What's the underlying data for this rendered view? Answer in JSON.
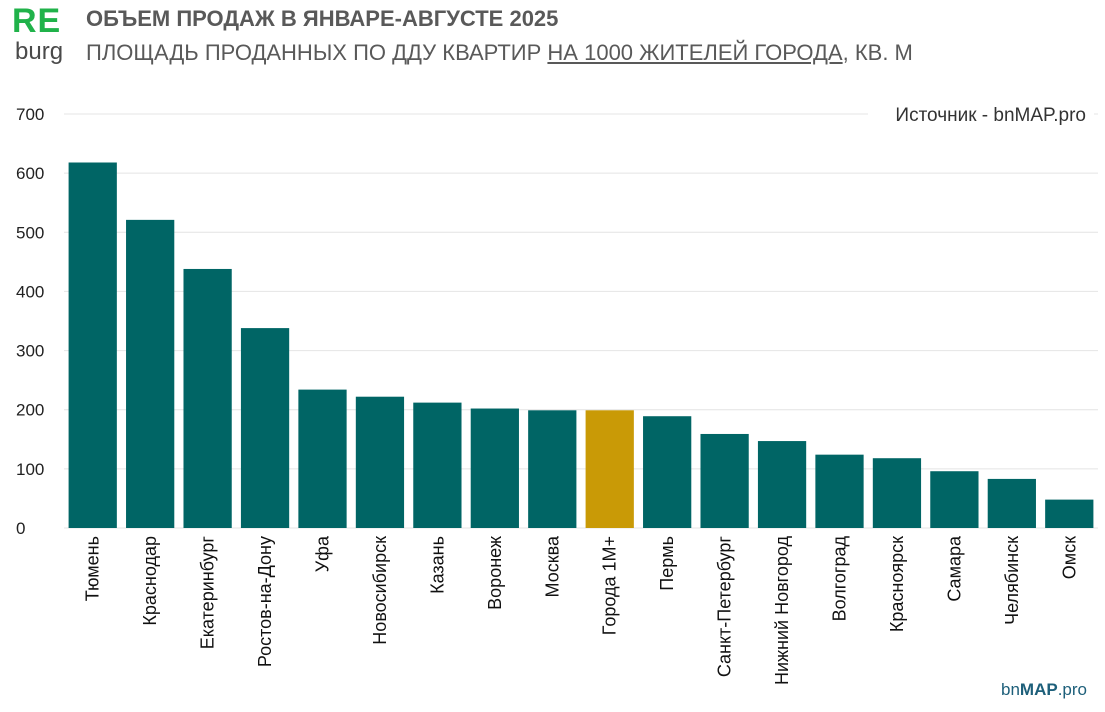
{
  "header": {
    "logo_top": "RE",
    "logo_bottom": "burg",
    "title": "ОБЪЕМ ПРОДАЖ В ЯНВАРЕ-АВГУСТЕ 2025",
    "subtitle_part1": "ПЛОЩАДЬ ПРОДАННЫХ  ПО ДДУ КВАРТИР ",
    "subtitle_underlined": "НА 1000 ЖИТЕЛЕЙ ГОРОДА",
    "subtitle_part2": ", КВ. М"
  },
  "footer": {
    "brand_prefix": "bn",
    "brand_bold": "MAP",
    "brand_suffix": ".pro"
  },
  "colors": {
    "bar": "#006565",
    "highlight": "#c99a06",
    "grid": "#e4e4e4"
  },
  "chart_data": {
    "type": "bar",
    "title": "ОБЪЕМ ПРОДАЖ В ЯНВАРЕ-АВГУСТЕ 2025",
    "source": "Источник - bnMAP.pro",
    "xlabel": "",
    "ylabel": "",
    "ylim": [
      0,
      700
    ],
    "yticks": [
      0,
      100,
      200,
      300,
      400,
      500,
      600,
      700
    ],
    "grid": true,
    "highlight_category": "Города 1М+",
    "categories": [
      "Тюмень",
      "Краснодар",
      "Екатеринбург",
      "Ростов-на-Дону",
      "Уфа",
      "Новосибирск",
      "Казань",
      "Воронеж",
      "Москва",
      "Города 1М+",
      "Пермь",
      "Санкт-Петербург",
      "Нижний Новгород",
      "Волгоград",
      "Красноярск",
      "Самара",
      "Челябинск",
      "Омск"
    ],
    "values": [
      618,
      521,
      438,
      338,
      234,
      222,
      212,
      202,
      199,
      199,
      189,
      159,
      147,
      124,
      118,
      96,
      83,
      48
    ]
  }
}
